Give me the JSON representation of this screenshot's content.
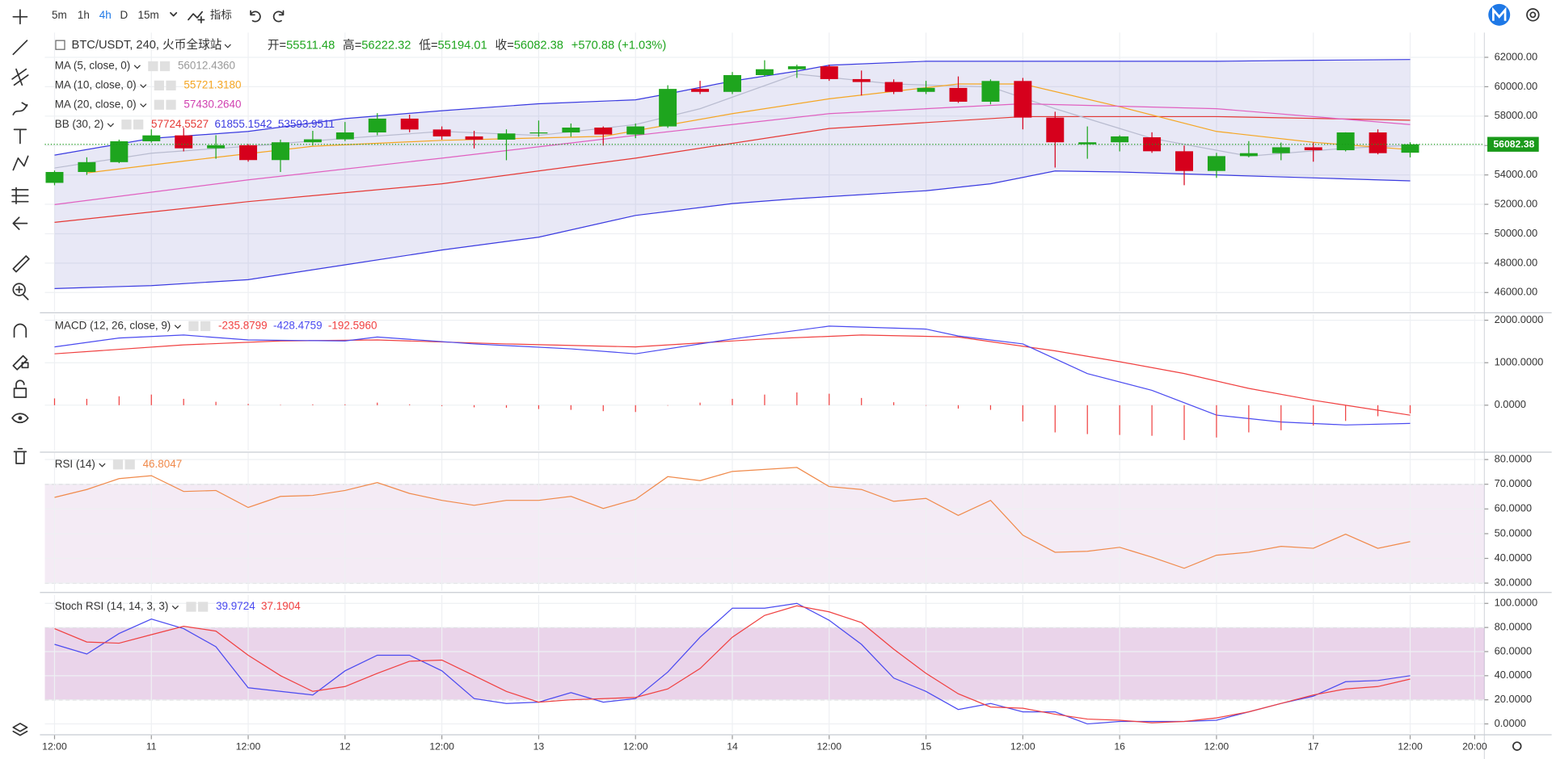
{
  "toolbar": {
    "intervals": [
      "5m",
      "1h",
      "4h",
      "D",
      "15m"
    ],
    "active_index": 2,
    "indicators_button": "指标"
  },
  "chart_data": [
    {
      "type": "candlestick",
      "title": "BTC/USDT, 240, 火币全球站",
      "ohlc_labels": [
        "开=",
        "高=",
        "低=",
        "收="
      ],
      "change_label": "+570.88 (+1.03%)",
      "up_color": "#1ea51e",
      "down_color": "#d6001c",
      "xlim": [
        -0.3,
        44.3
      ],
      "xticks": [
        {
          "value": 0,
          "label": "12:00"
        },
        {
          "value": 3,
          "label": "11"
        },
        {
          "value": 6,
          "label": "12:00"
        },
        {
          "value": 9,
          "label": "12"
        },
        {
          "value": 12,
          "label": "12:00"
        },
        {
          "value": 15,
          "label": "13"
        },
        {
          "value": 18,
          "label": "12:00"
        },
        {
          "value": 21,
          "label": "14"
        },
        {
          "value": 24,
          "label": "12:00"
        },
        {
          "value": 27,
          "label": "15"
        },
        {
          "value": 30,
          "label": "12:00"
        },
        {
          "value": 33,
          "label": "16"
        },
        {
          "value": 36,
          "label": "12:00"
        },
        {
          "value": 39,
          "label": "17"
        },
        {
          "value": 42,
          "label": "12:00"
        },
        {
          "value": 44,
          "label": "20:00"
        }
      ],
      "ylim": [
        44722,
        63681
      ],
      "yticks": [
        {
          "value": 46000,
          "label": "46000.00"
        },
        {
          "value": 48000,
          "label": "48000.00"
        },
        {
          "value": 50000,
          "label": "50000.00"
        },
        {
          "value": 52000,
          "label": "52000.00"
        },
        {
          "value": 54000,
          "label": "54000.00"
        },
        {
          "value": 56000,
          "label": "56000.00"
        },
        {
          "value": 58000,
          "label": "58000.00"
        },
        {
          "value": 60000,
          "label": "60000.00"
        },
        {
          "value": 62000,
          "label": "62000.00"
        }
      ],
      "x": [
        0,
        1,
        2,
        3,
        4,
        5,
        6,
        7,
        8,
        9,
        10,
        11,
        12,
        13,
        14,
        15,
        16,
        17,
        18,
        19,
        20,
        21,
        22,
        23,
        24,
        25,
        26,
        27,
        28,
        29,
        30,
        31,
        32,
        33,
        34,
        35,
        36,
        37,
        38,
        39,
        40,
        41,
        42
      ],
      "open": [
        53460,
        54200,
        54870,
        56290,
        56690,
        55810,
        56020,
        55010,
        56220,
        56420,
        56890,
        57830,
        57090,
        56620,
        56400,
        56820,
        56890,
        57220,
        56750,
        57300,
        59850,
        59650,
        60790,
        61190,
        61390,
        60520,
        60320,
        59650,
        59920,
        58980,
        60390,
        57900,
        56080,
        56220,
        56560,
        55610,
        54270,
        55280,
        55480,
        55880,
        55680,
        56890,
        55511.48
      ],
      "high": [
        54300,
        55200,
        56400,
        57100,
        57200,
        56700,
        56100,
        56400,
        57000,
        57600,
        58200,
        58100,
        57300,
        57000,
        57100,
        57700,
        57500,
        57300,
        57500,
        60100,
        60400,
        61000,
        61800,
        61500,
        61500,
        61100,
        60500,
        60400,
        60700,
        60500,
        60600,
        58300,
        57300,
        56700,
        56900,
        56000,
        55500,
        56300,
        56200,
        56200,
        56900,
        57100,
        56222.32
      ],
      "low": [
        53300,
        54000,
        54800,
        56200,
        55600,
        55100,
        54900,
        54200,
        56000,
        56300,
        56700,
        56900,
        56400,
        55800,
        55000,
        56600,
        56600,
        56000,
        56500,
        57200,
        59500,
        59500,
        60700,
        60600,
        60400,
        59400,
        59500,
        59500,
        58900,
        58800,
        57100,
        54500,
        55100,
        55600,
        55500,
        53300,
        53800,
        55200,
        55000,
        54900,
        55600,
        55400,
        55194.01
      ],
      "close": [
        54200,
        54870,
        56290,
        56690,
        55810,
        56020,
        55010,
        56220,
        56420,
        56890,
        57830,
        57090,
        56620,
        56400,
        56820,
        56890,
        57220,
        56750,
        57300,
        59850,
        59650,
        60790,
        61190,
        61390,
        60520,
        60320,
        59650,
        59920,
        58980,
        60390,
        57900,
        56220,
        56220,
        56620,
        55610,
        54270,
        55280,
        55480,
        55880,
        55680,
        56890,
        55480,
        56082.38
      ],
      "last_price_color": "#1a9a1a",
      "bb": {
        "name": "BB (30, 2)",
        "fill_color": "rgba(110,110,200,0.16)",
        "series": [
          {
            "color": "#e53935",
            "value_label": "57724.5527",
            "x": [
              0,
              6,
              12,
              18,
              24,
              30,
              36,
              42
            ],
            "values": [
              50773,
              52184,
              53395,
              55143,
              57159,
              57966,
              57966,
              57724.5527
            ]
          },
          {
            "color": "#3a3ae0",
            "value_label": "61855.1542",
            "x": [
              0,
              3,
              6,
              9,
              12,
              15,
              18,
              19,
              21,
              23,
              24,
              27,
              30,
              33,
              36,
              39,
              42
            ],
            "values": [
              55344,
              56487,
              56958,
              57832,
              58370,
              58840,
              59109,
              59512,
              60386,
              61059,
              61462,
              61731,
              61731,
              61731,
              61731,
              61798,
              61855.1542
            ]
          },
          {
            "color": "#3a3ae0",
            "value_label": "53593.9511",
            "x": [
              0,
              3,
              6,
              9,
              12,
              15,
              18,
              21,
              23,
              27,
              29,
              31,
              33,
              36,
              39,
              42
            ],
            "values": [
              46268,
              46470,
              46873,
              47882,
              48890,
              49764,
              51243,
              52050,
              52386,
              52924,
              53395,
              54268,
              54200,
              54000,
              53798,
              53593.9511
            ]
          }
        ]
      },
      "series": [
        {
          "name": "MA (5, close, 0)",
          "color": "#b9bcd0",
          "label_color": "#999999",
          "value_label": "56012.4360",
          "x": [
            0,
            3,
            6,
            9,
            12,
            15,
            18,
            20,
            23,
            26,
            29,
            31,
            34,
            37,
            40,
            42
          ],
          "values": [
            54470,
            55479,
            55949,
            56487,
            56958,
            56689,
            57428,
            58504,
            60857,
            60185,
            59983,
            58504,
            56487,
            55277,
            55815,
            56012.436
          ]
        },
        {
          "name": "MA (10, close, 0)",
          "color": "#f5a623",
          "label_color": "#f5a623",
          "value_label": "55721.3180",
          "x": [
            1,
            4,
            8,
            12,
            17,
            21,
            24,
            28,
            30,
            33,
            36,
            39,
            42
          ],
          "values": [
            54134,
            54941,
            55949,
            56353,
            56622,
            58168,
            59176,
            60185,
            60185,
            58639,
            56958,
            56218,
            55721.318
          ]
        },
        {
          "name": "MA (20, close, 0)",
          "color": "#e060c0",
          "label_color": "#d040b0",
          "value_label": "57430.2640",
          "x": [
            0,
            6,
            12,
            18,
            24,
            30,
            36,
            42
          ],
          "values": [
            51983,
            53664,
            55143,
            56689,
            58168,
            58840,
            58504,
            57430.264
          ]
        }
      ]
    },
    {
      "type": "line",
      "title": "MACD (12, 26, close, 9)",
      "ylim": [
        -1070,
        2140
      ],
      "yticks": [
        {
          "value": 0,
          "label": "0.0000"
        },
        {
          "value": 1000,
          "label": "1000.0000"
        },
        {
          "value": 2000,
          "label": "2000.0000"
        }
      ],
      "series": [
        {
          "style": "line",
          "color": "#f04040",
          "value_label": "-235.8799",
          "x": [
            0,
            4,
            7,
            10,
            14,
            18,
            22,
            25,
            28,
            31,
            33,
            35,
            37,
            39,
            42
          ],
          "values": [
            1210,
            1419,
            1512,
            1535,
            1442,
            1372,
            1558,
            1651,
            1605,
            1279,
            1023,
            744,
            395,
            116,
            -235.8799
          ]
        },
        {
          "style": "line",
          "color": "#4a4af0",
          "value_label": "-428.4759",
          "x": [
            0,
            2,
            4,
            6,
            9,
            10,
            13,
            16,
            18,
            21,
            24,
            27,
            28,
            30,
            32,
            34,
            36,
            38,
            40,
            42
          ],
          "values": [
            1372,
            1582,
            1651,
            1535,
            1512,
            1605,
            1442,
            1326,
            1210,
            1558,
            1861,
            1791,
            1628,
            1442,
            744,
            349,
            -233,
            -395,
            -465,
            -428.4759
          ]
        },
        {
          "style": "histogram",
          "color": "#f04040",
          "value_label": "-192.5960",
          "values": [
            160,
            150,
            210,
            250,
            150,
            80,
            30,
            10,
            20,
            20,
            60,
            20,
            -20,
            -50,
            -60,
            -90,
            -110,
            -140,
            -160,
            -10,
            60,
            150,
            250,
            300,
            270,
            170,
            70,
            -10,
            -80,
            -110,
            -380,
            -640,
            -680,
            -700,
            -720,
            -820,
            -760,
            -640,
            -590,
            -480,
            -370,
            -260,
            -192.596
          ]
        }
      ]
    },
    {
      "type": "line",
      "title": "RSI (14)",
      "ylim": [
        26.8,
        82.8
      ],
      "band": [
        30,
        70
      ],
      "band_color": "rgba(150,60,160,0.10)",
      "yticks": [
        {
          "value": 30,
          "label": "30.0000"
        },
        {
          "value": 40,
          "label": "40.0000"
        },
        {
          "value": 50,
          "label": "50.0000"
        },
        {
          "value": 60,
          "label": "60.0000"
        },
        {
          "value": 70,
          "label": "70.0000"
        },
        {
          "value": 80,
          "label": "80.0000"
        }
      ],
      "series": [
        {
          "style": "line",
          "color": "#f08a4b",
          "value_label": "46.8047",
          "values": [
            64.7,
            67.9,
            72.3,
            73.5,
            67.1,
            67.5,
            60.6,
            65.1,
            65.5,
            67.5,
            70.7,
            66.3,
            63.5,
            61.5,
            63.5,
            63.5,
            65.1,
            60.2,
            63.9,
            73.1,
            71.5,
            75.2,
            76.0,
            76.8,
            69.1,
            67.9,
            63.1,
            64.3,
            57.4,
            63.5,
            49.4,
            42.5,
            42.9,
            44.5,
            40.5,
            36.0,
            41.3,
            42.5,
            44.9,
            44.1,
            49.8,
            44.1,
            46.8047
          ]
        }
      ]
    },
    {
      "type": "line",
      "title": "Stoch RSI (14, 14, 3, 3)",
      "ylim": [
        -7.8,
        107
      ],
      "band": [
        20,
        80
      ],
      "band_color": "rgba(150,40,150,0.20)",
      "yticks": [
        {
          "value": 0,
          "label": "0.0000"
        },
        {
          "value": 20,
          "label": "20.0000"
        },
        {
          "value": 40,
          "label": "40.0000"
        },
        {
          "value": 60,
          "label": "60.0000"
        },
        {
          "value": 80,
          "label": "80.0000"
        },
        {
          "value": 100,
          "label": "100.0000"
        }
      ],
      "series": [
        {
          "style": "line",
          "color": "#4a4af0",
          "value_label": "39.9724",
          "values": [
            66,
            58,
            75,
            87,
            79,
            64,
            30,
            27,
            24,
            44,
            57,
            57,
            44,
            21,
            17,
            18,
            26,
            18,
            21,
            43,
            72,
            96,
            96,
            100,
            86,
            66,
            38,
            27,
            12,
            17,
            10,
            10,
            0,
            2,
            2,
            2,
            3,
            10,
            17,
            23,
            35,
            36,
            39.9724
          ]
        },
        {
          "style": "line",
          "color": "#f04040",
          "value_label": "37.1904",
          "values": [
            79,
            68,
            67,
            74,
            81,
            77,
            57,
            40,
            27,
            31,
            42,
            52,
            53,
            40,
            27,
            18,
            20,
            21,
            22,
            29,
            46,
            72,
            90,
            98,
            93,
            84,
            62,
            42,
            25,
            14,
            13,
            8,
            4,
            3,
            1,
            2,
            5,
            10,
            17,
            24,
            29,
            31,
            37.1904
          ]
        }
      ]
    }
  ]
}
